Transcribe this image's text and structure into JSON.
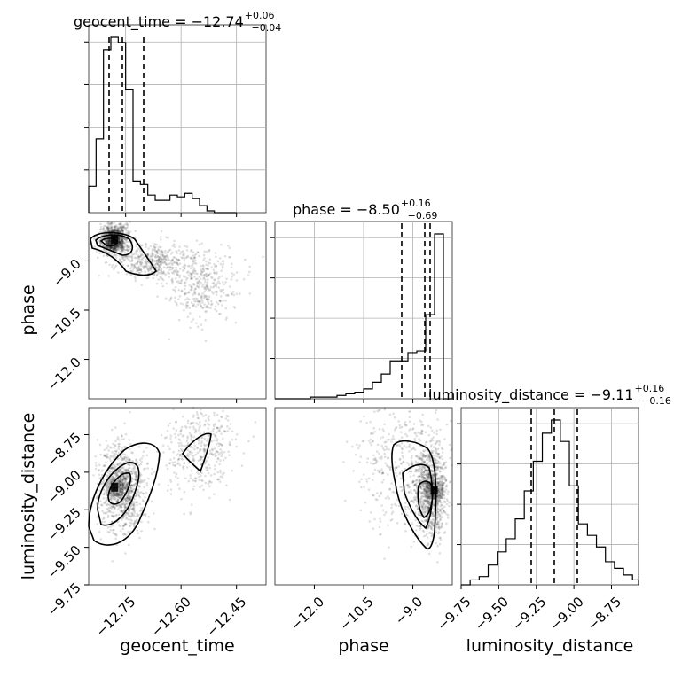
{
  "chart_data": {
    "type": "corner",
    "parameters": [
      "geocent_time",
      "phase",
      "luminosity_distance"
    ],
    "titles": [
      {
        "param": "geocent_time",
        "label": "geocent_time = −12.74",
        "sup": "+0.06",
        "sub": "−0.04"
      },
      {
        "param": "phase",
        "label": "phase = −8.50",
        "sup": "+0.16",
        "sub": "−0.69"
      },
      {
        "param": "luminosity_distance",
        "label": "luminosity_distance = −9.11",
        "sup": "+0.16",
        "sub": "−0.16"
      }
    ],
    "xlabels": [
      "geocent_time",
      "phase",
      "luminosity_distance"
    ],
    "ylabels": [
      "phase",
      "luminosity_distance"
    ],
    "ranges": {
      "geocent_time": [
        -12.85,
        -12.37
      ],
      "phase": [
        -13.2,
        -7.8
      ],
      "luminosity_distance": [
        -9.75,
        -8.57
      ]
    },
    "ticks": {
      "geocent_time": [
        -12.75,
        -12.6,
        -12.45
      ],
      "phase": [
        -12.0,
        -10.5,
        -9.0
      ],
      "luminosity_distance": [
        -9.75,
        -9.5,
        -9.25,
        -9.0,
        -8.75
      ]
    },
    "tick_labels": {
      "geocent_time": [
        "−12.75",
        "−12.60",
        "−12.45"
      ],
      "phase": [
        "−12.0",
        "−10.5",
        "−9.0"
      ],
      "luminosity_distance": [
        "−9.75",
        "−9.50",
        "−9.25",
        "−9.00",
        "−8.75"
      ]
    },
    "quantiles": {
      "geocent_time": [
        -12.78,
        -12.74,
        -12.68
      ],
      "phase": [
        -9.19,
        -8.5,
        -8.34
      ],
      "luminosity_distance": [
        -9.27,
        -9.11,
        -8.95
      ]
    },
    "histograms": {
      "geocent_time": {
        "edges": [
          -12.85,
          -12.83,
          -12.81,
          -12.79,
          -12.77,
          -12.75,
          -12.73,
          -12.71,
          -12.69,
          -12.67,
          -12.65,
          -12.63,
          -12.61,
          -12.59,
          -12.57,
          -12.55,
          -12.53,
          -12.51,
          -12.49,
          -12.47,
          -12.45
        ],
        "counts": [
          0.15,
          0.42,
          0.93,
          1.0,
          0.97,
          0.7,
          0.18,
          0.16,
          0.1,
          0.07,
          0.07,
          0.1,
          0.09,
          0.11,
          0.08,
          0.04,
          0.01,
          0.0,
          0.0,
          0.0
        ]
      },
      "phase": {
        "edges": [
          -13.2,
          -12.93,
          -12.66,
          -12.39,
          -12.12,
          -11.85,
          -11.58,
          -11.31,
          -11.04,
          -10.77,
          -10.5,
          -10.23,
          -9.96,
          -9.69,
          -9.42,
          -9.15,
          -8.88,
          -8.61,
          -8.34,
          -8.07,
          -7.8
        ],
        "counts": [
          0.0,
          0.0,
          0.0,
          0.0,
          0.01,
          0.01,
          0.01,
          0.02,
          0.03,
          0.04,
          0.06,
          0.1,
          0.15,
          0.23,
          0.23,
          0.28,
          0.29,
          0.51,
          1.0,
          0.0
        ]
      },
      "luminosity_distance": {
        "edges": [
          -9.75,
          -9.69,
          -9.63,
          -9.57,
          -9.51,
          -9.45,
          -9.39,
          -9.33,
          -9.27,
          -9.21,
          -9.15,
          -9.09,
          -9.03,
          -8.97,
          -8.91,
          -8.85,
          -8.79,
          -8.73,
          -8.67,
          -8.61,
          -8.57
        ],
        "counts": [
          0.0,
          0.03,
          0.05,
          0.12,
          0.2,
          0.28,
          0.4,
          0.57,
          0.75,
          0.92,
          1.0,
          0.87,
          0.6,
          0.37,
          0.3,
          0.23,
          0.14,
          0.1,
          0.06,
          0.03
        ]
      }
    },
    "scatter_2d": {
      "geocent_time_vs_phase": {
        "dense_core": {
          "x": -12.78,
          "y": -8.35
        },
        "clusters": [
          {
            "x": -12.78,
            "y": -8.35,
            "sx": 0.02,
            "sy": 0.25,
            "weight": 0.5
          },
          {
            "x": -12.68,
            "y": -9.0,
            "sx": 0.05,
            "sy": 0.25,
            "weight": 0.25
          },
          {
            "x": -12.55,
            "y": -9.7,
            "sx": 0.05,
            "sy": 0.55,
            "weight": 0.25
          }
        ]
      },
      "geocent_time_vs_luminosity_distance": {
        "dense_core": {
          "x": -12.78,
          "y": -9.1
        },
        "clusters": [
          {
            "x": -12.76,
            "y": -9.1,
            "sx": 0.03,
            "sy": 0.14,
            "weight": 0.7
          },
          {
            "x": -12.55,
            "y": -8.85,
            "sx": 0.05,
            "sy": 0.15,
            "weight": 0.3
          }
        ]
      },
      "phase_vs_luminosity_distance": {
        "dense_core": {
          "x": -8.35,
          "y": -9.12
        },
        "clusters": [
          {
            "x": -8.45,
            "y": -9.12,
            "sx": 0.25,
            "sy": 0.15,
            "weight": 0.7
          },
          {
            "x": -9.4,
            "y": -8.95,
            "sx": 0.7,
            "sy": 0.22,
            "weight": 0.3
          }
        ]
      }
    },
    "grid": true
  }
}
